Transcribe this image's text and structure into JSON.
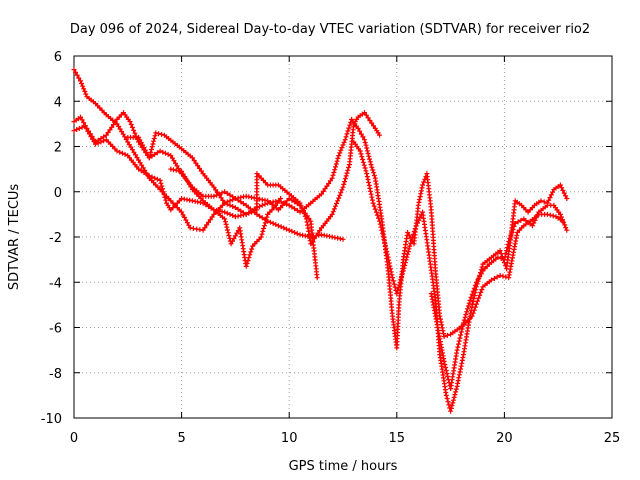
{
  "chart_data": {
    "type": "scatter",
    "title": "Day 096 of 2024, Sidereal Day-to-day VTEC variation (SDTVAR) for receiver rio2",
    "xlabel": "GPS time / hours",
    "ylabel": "SDTVAR / TECUs",
    "xlim": [
      0,
      25
    ],
    "ylim": [
      -10,
      6
    ],
    "xticks": [
      0,
      5,
      10,
      15,
      20,
      25
    ],
    "yticks": [
      -10,
      -8,
      -6,
      -4,
      -2,
      0,
      2,
      4,
      6
    ],
    "grid": true,
    "marker": "+",
    "color": "#ff0000",
    "series": [
      {
        "points": [
          [
            0.0,
            5.4
          ],
          [
            0.3,
            4.9
          ],
          [
            0.6,
            4.2
          ],
          [
            1.0,
            3.9
          ],
          [
            1.5,
            3.4
          ],
          [
            2.0,
            3.0
          ],
          [
            2.5,
            2.2
          ],
          [
            3.0,
            1.4
          ],
          [
            3.5,
            0.6
          ],
          [
            4.0,
            0.1
          ],
          [
            4.5,
            -0.4
          ],
          [
            5.0,
            -0.9
          ],
          [
            5.4,
            -1.6
          ],
          [
            6.0,
            -1.7
          ],
          [
            6.5,
            -1.0
          ],
          [
            7.0,
            -0.5
          ],
          [
            7.5,
            -0.3
          ],
          [
            8.0,
            -0.6
          ],
          [
            8.5,
            -1.0
          ],
          [
            9.0,
            -1.3
          ],
          [
            9.5,
            -1.5
          ],
          [
            10.0,
            -1.7
          ],
          [
            10.5,
            -1.9
          ],
          [
            11.0,
            -2.0
          ],
          [
            11.5,
            -1.9
          ],
          [
            12.0,
            -2.0
          ],
          [
            12.5,
            -2.1
          ]
        ]
      },
      {
        "points": [
          [
            0.0,
            3.1
          ],
          [
            0.3,
            3.3
          ],
          [
            0.6,
            2.8
          ],
          [
            1.0,
            2.2
          ],
          [
            1.5,
            2.5
          ],
          [
            2.0,
            3.2
          ],
          [
            2.3,
            3.5
          ],
          [
            2.6,
            3.1
          ],
          [
            3.0,
            2.2
          ],
          [
            3.5,
            1.5
          ],
          [
            4.0,
            1.8
          ],
          [
            4.5,
            1.6
          ],
          [
            5.0,
            0.8
          ],
          [
            5.5,
            0.2
          ],
          [
            6.0,
            -0.2
          ],
          [
            6.5,
            -0.2
          ],
          [
            7.0,
            0.0
          ],
          [
            7.5,
            -0.3
          ],
          [
            8.0,
            -0.2
          ],
          [
            8.5,
            -0.3
          ],
          [
            9.0,
            -0.4
          ],
          [
            9.5,
            -0.8
          ],
          [
            10.0,
            -0.3
          ],
          [
            10.5,
            -0.6
          ],
          [
            11.0,
            -1.3
          ],
          [
            11.3,
            -3.8
          ]
        ]
      },
      {
        "points": [
          [
            0.0,
            2.7
          ],
          [
            0.5,
            2.9
          ],
          [
            1.0,
            2.1
          ],
          [
            1.5,
            2.3
          ],
          [
            2.0,
            1.8
          ],
          [
            2.5,
            1.6
          ],
          [
            3.0,
            1.0
          ],
          [
            3.5,
            0.7
          ],
          [
            4.0,
            0.5
          ],
          [
            4.3,
            -0.5
          ],
          [
            4.5,
            -0.8
          ],
          [
            5.0,
            -0.3
          ],
          [
            5.5,
            -0.4
          ],
          [
            6.0,
            -0.5
          ],
          [
            6.5,
            -0.8
          ],
          [
            7.0,
            -1.2
          ],
          [
            7.3,
            -2.3
          ],
          [
            7.7,
            -1.6
          ],
          [
            8.0,
            -3.3
          ],
          [
            8.3,
            -2.4
          ],
          [
            8.7,
            -2.0
          ],
          [
            9.0,
            -1.0
          ],
          [
            9.3,
            -0.7
          ],
          [
            9.6,
            -0.3
          ]
        ]
      },
      {
        "points": [
          [
            2.5,
            2.4
          ],
          [
            3.0,
            2.4
          ],
          [
            3.5,
            1.5
          ],
          [
            3.8,
            2.6
          ],
          [
            4.2,
            2.5
          ],
          [
            4.6,
            2.2
          ],
          [
            5.0,
            1.9
          ],
          [
            5.5,
            1.5
          ],
          [
            6.0,
            0.8
          ],
          [
            6.5,
            0.2
          ],
          [
            7.0,
            -0.5
          ],
          [
            7.5,
            -0.7
          ],
          [
            8.0,
            -1.0
          ],
          [
            8.5,
            -0.8
          ],
          [
            8.5,
            0.8
          ],
          [
            9.0,
            0.3
          ],
          [
            9.5,
            0.3
          ],
          [
            10.0,
            -0.1
          ],
          [
            10.5,
            -0.5
          ],
          [
            10.8,
            -1.2
          ],
          [
            11.0,
            -2.3
          ],
          [
            11.5,
            -1.6
          ],
          [
            12.0,
            -1.0
          ],
          [
            12.5,
            0.2
          ],
          [
            12.8,
            1.2
          ],
          [
            13.0,
            3.0
          ],
          [
            13.2,
            3.3
          ],
          [
            13.5,
            3.5
          ],
          [
            14.0,
            2.8
          ],
          [
            14.2,
            2.5
          ]
        ]
      },
      {
        "points": [
          [
            4.5,
            1.0
          ],
          [
            5.0,
            0.9
          ],
          [
            5.5,
            0.1
          ],
          [
            6.0,
            -0.4
          ],
          [
            6.5,
            -0.8
          ],
          [
            7.0,
            -0.9
          ],
          [
            7.5,
            -1.1
          ],
          [
            8.0,
            -1.0
          ],
          [
            8.5,
            -0.7
          ],
          [
            9.0,
            -0.5
          ],
          [
            9.5,
            -0.4
          ],
          [
            10.0,
            -0.6
          ],
          [
            10.5,
            -0.9
          ],
          [
            11.0,
            -0.5
          ],
          [
            11.5,
            -0.1
          ],
          [
            12.0,
            0.6
          ],
          [
            12.3,
            1.6
          ],
          [
            12.6,
            2.3
          ],
          [
            12.9,
            3.2
          ],
          [
            13.2,
            2.8
          ],
          [
            13.5,
            2.3
          ],
          [
            13.8,
            1.2
          ],
          [
            14.0,
            0.6
          ],
          [
            14.3,
            -1.2
          ],
          [
            14.6,
            -3.5
          ],
          [
            14.8,
            -5.5
          ],
          [
            15.0,
            -6.9
          ],
          [
            15.1,
            -5.0
          ],
          [
            15.3,
            -3.0
          ],
          [
            15.5,
            -1.8
          ],
          [
            15.8,
            -2.3
          ],
          [
            16.0,
            -0.6
          ],
          [
            16.2,
            0.3
          ],
          [
            16.4,
            0.8
          ],
          [
            16.6,
            -0.8
          ],
          [
            16.8,
            -3.5
          ],
          [
            17.0,
            -5.5
          ],
          [
            17.2,
            -6.4
          ],
          [
            17.5,
            -6.3
          ],
          [
            17.8,
            -6.1
          ],
          [
            18.2,
            -5.8
          ],
          [
            18.5,
            -5.5
          ],
          [
            18.8,
            -4.7
          ],
          [
            19.0,
            -4.2
          ],
          [
            19.4,
            -3.9
          ],
          [
            19.8,
            -3.7
          ],
          [
            20.2,
            -3.8
          ],
          [
            20.4,
            -2.8
          ],
          [
            20.6,
            -1.8
          ],
          [
            20.9,
            -1.5
          ],
          [
            21.2,
            -1.3
          ],
          [
            21.6,
            -1.0
          ],
          [
            22.0,
            -1.0
          ],
          [
            22.4,
            -1.1
          ],
          [
            22.7,
            -1.3
          ]
        ]
      },
      {
        "points": [
          [
            13.0,
            2.2
          ],
          [
            13.3,
            1.8
          ],
          [
            13.6,
            0.8
          ],
          [
            13.9,
            -0.5
          ],
          [
            14.2,
            -1.3
          ],
          [
            14.5,
            -2.5
          ],
          [
            14.8,
            -3.8
          ],
          [
            15.0,
            -4.5
          ],
          [
            15.3,
            -3.5
          ],
          [
            15.6,
            -2.4
          ],
          [
            15.9,
            -1.5
          ],
          [
            16.2,
            -0.9
          ],
          [
            16.5,
            -2.8
          ],
          [
            16.8,
            -4.8
          ],
          [
            17.0,
            -7.2
          ],
          [
            17.3,
            -9.0
          ],
          [
            17.5,
            -9.7
          ],
          [
            17.8,
            -8.6
          ],
          [
            18.1,
            -7.2
          ],
          [
            18.4,
            -5.5
          ],
          [
            18.7,
            -4.2
          ],
          [
            19.0,
            -3.2
          ],
          [
            19.4,
            -2.9
          ],
          [
            19.8,
            -2.6
          ],
          [
            20.1,
            -3.4
          ],
          [
            20.3,
            -2.0
          ],
          [
            20.5,
            -0.4
          ],
          [
            20.8,
            -0.6
          ],
          [
            21.1,
            -0.9
          ],
          [
            21.4,
            -0.6
          ],
          [
            21.7,
            -0.4
          ],
          [
            22.0,
            -0.5
          ],
          [
            22.3,
            0.1
          ],
          [
            22.6,
            0.3
          ],
          [
            22.9,
            -0.3
          ]
        ]
      },
      {
        "points": [
          [
            16.6,
            -4.5
          ],
          [
            16.9,
            -6.0
          ],
          [
            17.2,
            -7.5
          ],
          [
            17.5,
            -8.7
          ],
          [
            17.8,
            -7.0
          ],
          [
            18.1,
            -5.8
          ],
          [
            18.4,
            -4.8
          ],
          [
            18.7,
            -4.0
          ],
          [
            19.0,
            -3.5
          ],
          [
            19.3,
            -3.2
          ],
          [
            19.7,
            -2.9
          ],
          [
            20.0,
            -3.0
          ],
          [
            20.2,
            -2.2
          ],
          [
            20.5,
            -1.4
          ],
          [
            20.9,
            -1.2
          ],
          [
            21.3,
            -1.5
          ],
          [
            21.6,
            -0.9
          ],
          [
            22.0,
            -0.6
          ],
          [
            22.3,
            -0.6
          ],
          [
            22.6,
            -1.0
          ],
          [
            22.9,
            -1.7
          ]
        ]
      }
    ]
  }
}
